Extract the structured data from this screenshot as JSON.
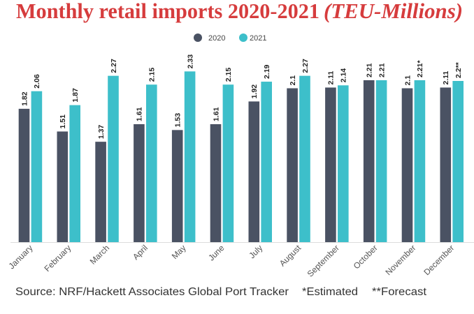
{
  "chart_data": {
    "type": "bar",
    "title": "Monthly retail imports 2020-2021",
    "title_unit": "(TEU-Millions)",
    "xlabel": "",
    "ylabel": "",
    "ylim": [
      0,
      2.5
    ],
    "grid": false,
    "legend": "top-center",
    "categories": [
      "January",
      "February",
      "March",
      "April",
      "May",
      "June",
      "July",
      "August",
      "September",
      "October",
      "November",
      "December"
    ],
    "series": [
      {
        "name": "2020",
        "color": "#4a5263",
        "values": [
          1.82,
          1.51,
          1.37,
          1.61,
          1.53,
          1.61,
          1.92,
          2.1,
          2.11,
          2.21,
          2.1,
          2.11
        ],
        "labels": [
          "1.82",
          "1.51",
          "1.37",
          "1.61",
          "1.53",
          "1.61",
          "1.92",
          "2.1",
          "2.11",
          "2.21",
          "2.1",
          "2.11"
        ]
      },
      {
        "name": "2021",
        "color": "#3dbfca",
        "values": [
          2.06,
          1.87,
          2.27,
          2.15,
          2.33,
          2.15,
          2.19,
          2.27,
          2.14,
          2.21,
          2.21,
          2.2
        ],
        "labels": [
          "2.06",
          "1.87",
          "2.27",
          "2.15",
          "2.33",
          "2.15",
          "2.19",
          "2.27",
          "2.14",
          "2.21",
          "2.21*",
          "2.2**"
        ]
      }
    ]
  },
  "footer": {
    "source": "Source: NRF/Hackett Associates Global Port Tracker",
    "note_estimated": "*Estimated",
    "note_forecast": "**Forecast"
  },
  "colors": {
    "title": "#d63c3d",
    "axis": "#dcdcdc"
  }
}
